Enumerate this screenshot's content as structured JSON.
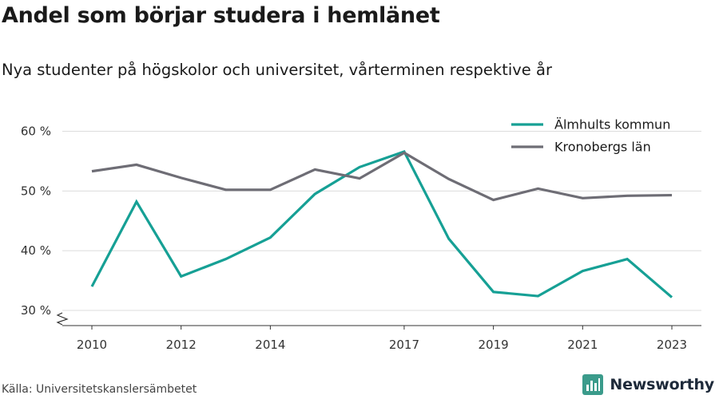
{
  "header": {
    "title": "Andel som börjar studera i hemlänet",
    "subtitle": "Nya studenter på högskolor och universitet, vårterminen respektive år"
  },
  "footer": {
    "source": "Källa: Universitetskanslersämbetet",
    "brand": "Newsworthy"
  },
  "colors": {
    "almhult": "#16a095",
    "kronoberg": "#6e6d75",
    "grid": "#dcdcdc",
    "brand_icon": "#3b9b8b"
  },
  "chart_data": {
    "type": "line",
    "x": [
      2010,
      2011,
      2012,
      2013,
      2014,
      2015,
      2016,
      2017,
      2018,
      2019,
      2020,
      2021,
      2022,
      2023
    ],
    "x_tick_labels": [
      "2010",
      "2012",
      "2014",
      "2017",
      "2019",
      "2021",
      "2023"
    ],
    "x_tick_values": [
      2010,
      2012,
      2014,
      2017,
      2019,
      2021,
      2023
    ],
    "y_tick_labels": [
      "30 %",
      "40 %",
      "50 %",
      "60 %"
    ],
    "y_tick_values": [
      30,
      40,
      50,
      60
    ],
    "ylim": [
      30,
      60
    ],
    "y_axis_broken": true,
    "grid": true,
    "legend_position": "top-right",
    "series": [
      {
        "name": "Älmhults kommun",
        "color": "#16a095",
        "values": [
          34.0,
          48.2,
          35.7,
          38.6,
          42.2,
          49.5,
          54.0,
          56.6,
          42.0,
          33.1,
          32.4,
          36.6,
          38.6,
          32.2
        ]
      },
      {
        "name": "Kronobergs län",
        "color": "#6e6d75",
        "values": [
          53.3,
          54.4,
          52.2,
          50.2,
          50.2,
          53.6,
          52.1,
          56.4,
          52.0,
          48.5,
          50.4,
          48.8,
          49.2,
          49.3
        ]
      }
    ]
  }
}
